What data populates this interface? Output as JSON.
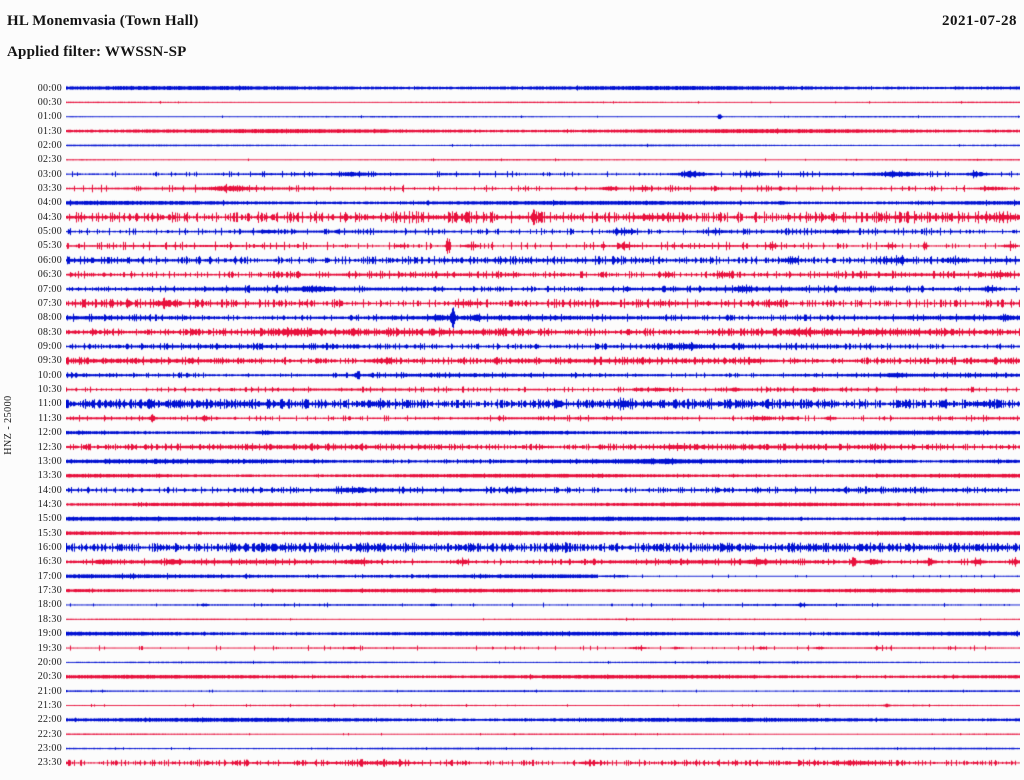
{
  "header": {
    "station_title": "HL Monemvasia (Town Hall)",
    "filter_label": "Applied filter: WWSSN-SP",
    "date": "2021-07-28"
  },
  "axis": {
    "left_label": "HNZ - 25000"
  },
  "colors": {
    "blue": "#0010d2",
    "red": "#e8103c",
    "text": "#1a1a1a",
    "background": "#fcfcfc"
  },
  "chart_data": {
    "type": "line",
    "subtype": "helicorder",
    "title": "HL Monemvasia (Town Hall)",
    "filter": "WWSSN-SP",
    "date": "2021-07-28",
    "channel": "HNZ",
    "scale": 25000,
    "minutes_per_row": 30,
    "legend_position": "none",
    "grid": false,
    "row_color_cycle": [
      "blue",
      "red"
    ],
    "rows": [
      {
        "t": "00:00",
        "c": "blue",
        "b": 1.4,
        "d": 0.02,
        "s": 0.3,
        "e": []
      },
      {
        "t": "00:30",
        "c": "red",
        "b": 0.5,
        "d": 0.02,
        "s": 0.3,
        "e": []
      },
      {
        "t": "01:00",
        "c": "blue",
        "b": 0.5,
        "d": 0.02,
        "s": 0.3,
        "e": [
          [
            0.685,
            3,
            0.0015
          ]
        ]
      },
      {
        "t": "01:30",
        "c": "red",
        "b": 1.4,
        "d": 0.02,
        "s": 0.3,
        "e": []
      },
      {
        "t": "02:00",
        "c": "blue",
        "b": 0.6,
        "d": 0.02,
        "s": 0.3,
        "e": []
      },
      {
        "t": "02:30",
        "c": "red",
        "b": 0.5,
        "d": 0.02,
        "s": 0.3,
        "e": []
      },
      {
        "t": "03:00",
        "c": "blue",
        "b": 0.8,
        "d": 0.15,
        "s": 0.8,
        "e": [
          [
            0.3,
            1.5,
            0.01
          ],
          [
            0.655,
            2.8,
            0.01
          ],
          [
            0.72,
            1.3,
            0.008
          ],
          [
            0.87,
            1.8,
            0.015
          ],
          [
            0.955,
            2.0,
            0.006
          ]
        ]
      },
      {
        "t": "03:30",
        "c": "red",
        "b": 0.8,
        "d": 0.2,
        "s": 1.0,
        "e": [
          [
            0.17,
            2.5,
            0.012
          ],
          [
            0.57,
            1.5,
            0.006
          ],
          [
            0.605,
            1.5,
            0.004
          ],
          [
            0.97,
            1.5,
            0.01
          ]
        ]
      },
      {
        "t": "04:00",
        "c": "blue",
        "b": 1.4,
        "d": 0.05,
        "s": 0.4,
        "e": [
          [
            0.75,
            1.0,
            0.003
          ]
        ]
      },
      {
        "t": "04:30",
        "c": "red",
        "b": 1.1,
        "d": 0.55,
        "s": 1.6,
        "e": [
          [
            0.49,
            7,
            0.0015
          ],
          [
            0.62,
            1.6,
            0.02
          ],
          [
            0.985,
            1.3,
            0.01
          ]
        ]
      },
      {
        "t": "05:00",
        "c": "blue",
        "b": 0.8,
        "d": 0.3,
        "s": 1.0,
        "e": [
          [
            0.585,
            1.8,
            0.008
          ],
          [
            0.21,
            1.2,
            0.006
          ],
          [
            0.68,
            1.0,
            0.008
          ],
          [
            0.81,
            1.0,
            0.006
          ]
        ]
      },
      {
        "t": "05:30",
        "c": "red",
        "b": 0.7,
        "d": 0.25,
        "s": 1.2,
        "e": [
          [
            0.4,
            6,
            0.0015
          ],
          [
            0.425,
            2,
            0.005
          ],
          [
            0.35,
            1.5,
            0.004
          ],
          [
            0.585,
            1.6,
            0.004
          ],
          [
            0.74,
            1.6,
            0.0025
          ],
          [
            0.9,
            5,
            0.0015
          ],
          [
            0.865,
            1.6,
            0.004
          ],
          [
            0.99,
            1.4,
            0.004
          ]
        ]
      },
      {
        "t": "06:00",
        "c": "blue",
        "b": 1.0,
        "d": 0.5,
        "s": 1.1,
        "e": [
          [
            0.76,
            1.5,
            0.008
          ],
          [
            0.87,
            1.5,
            0.012
          ],
          [
            0.93,
            1.2,
            0.006
          ]
        ]
      },
      {
        "t": "06:30",
        "c": "red",
        "b": 0.9,
        "d": 0.4,
        "s": 1.0,
        "e": [
          [
            0.63,
            1.8,
            0.003
          ],
          [
            0.69,
            1.8,
            0.006
          ],
          [
            0.98,
            1.5,
            0.008
          ]
        ]
      },
      {
        "t": "07:00",
        "c": "blue",
        "b": 1.2,
        "d": 0.3,
        "s": 0.8,
        "e": [
          [
            0.26,
            1.8,
            0.01
          ],
          [
            0.71,
            1.5,
            0.006
          ],
          [
            0.97,
            1.5,
            0.006
          ]
        ]
      },
      {
        "t": "07:30",
        "c": "red",
        "b": 0.9,
        "d": 0.5,
        "s": 1.2,
        "e": [
          [
            0.105,
            2.2,
            0.008
          ],
          [
            0.42,
            1.5,
            0.01
          ],
          [
            0.74,
            1.5,
            0.006
          ]
        ]
      },
      {
        "t": "08:00",
        "c": "blue",
        "b": 1.3,
        "d": 0.25,
        "s": 0.8,
        "e": [
          [
            0.405,
            9,
            0.0013
          ],
          [
            0.39,
            1.6,
            0.005
          ],
          [
            0.43,
            2.2,
            0.0025
          ],
          [
            0.985,
            1.2,
            0.004
          ]
        ]
      },
      {
        "t": "08:30",
        "c": "red",
        "b": 1.3,
        "d": 0.6,
        "s": 1.0,
        "e": [
          [
            0.24,
            1.5,
            0.015
          ],
          [
            0.77,
            1.2,
            0.01
          ]
        ]
      },
      {
        "t": "09:00",
        "c": "blue",
        "b": 1.0,
        "d": 0.5,
        "s": 0.8,
        "e": [
          [
            0.65,
            1.3,
            0.01
          ]
        ]
      },
      {
        "t": "09:30",
        "c": "red",
        "b": 1.2,
        "d": 0.5,
        "s": 0.9,
        "e": [
          [
            0.33,
            1.5,
            0.01
          ],
          [
            0.72,
            1.3,
            0.008
          ]
        ]
      },
      {
        "t": "10:00",
        "c": "blue",
        "b": 1.1,
        "d": 0.2,
        "s": 0.6,
        "e": [
          [
            0.305,
            3.5,
            0.0015
          ],
          [
            0.87,
            1.2,
            0.006
          ]
        ]
      },
      {
        "t": "10:30",
        "c": "red",
        "b": 0.8,
        "d": 0.25,
        "s": 0.8,
        "e": [
          [
            0.62,
            1.8,
            0.006
          ],
          [
            0.6,
            1.5,
            0.004
          ],
          [
            0.7,
            1.2,
            0.004
          ]
        ]
      },
      {
        "t": "11:00",
        "c": "blue",
        "b": 1.1,
        "d": 0.85,
        "s": 1.3,
        "e": [
          [
            0.585,
            2.5,
            0.005
          ],
          [
            0.33,
            1.4,
            0.01
          ],
          [
            0.96,
            1.6,
            0.008
          ]
        ]
      },
      {
        "t": "11:30",
        "c": "red",
        "b": 0.8,
        "d": 0.2,
        "s": 0.8,
        "e": [
          [
            0.09,
            2.5,
            0.002
          ],
          [
            0.145,
            2.5,
            0.002
          ],
          [
            0.73,
            2.0,
            0.008
          ],
          [
            0.76,
            1.5,
            0.004
          ],
          [
            0.8,
            1.2,
            0.004
          ]
        ]
      },
      {
        "t": "12:00",
        "c": "blue",
        "b": 1.4,
        "d": 0.05,
        "s": 0.3,
        "e": [
          [
            0.21,
            1.0,
            0.004
          ]
        ]
      },
      {
        "t": "12:30",
        "c": "red",
        "b": 1.1,
        "d": 0.5,
        "s": 0.8,
        "e": [
          [
            0.64,
            1.2,
            0.008
          ]
        ]
      },
      {
        "t": "13:00",
        "c": "blue",
        "b": 1.4,
        "d": 0.15,
        "s": 0.4,
        "e": [
          [
            0.62,
            0.8,
            0.02
          ],
          [
            0.86,
            0.8,
            0.01
          ]
        ]
      },
      {
        "t": "13:30",
        "c": "red",
        "b": 1.3,
        "d": 0.08,
        "s": 0.3,
        "e": []
      },
      {
        "t": "14:00",
        "c": "blue",
        "b": 1.0,
        "d": 0.35,
        "s": 0.8,
        "e": [
          [
            0.3,
            1.5,
            0.012
          ],
          [
            0.47,
            1.3,
            0.01
          ]
        ]
      },
      {
        "t": "14:30",
        "c": "red",
        "b": 1.3,
        "d": 0.06,
        "s": 0.3,
        "e": []
      },
      {
        "t": "15:00",
        "c": "blue",
        "b": 1.4,
        "d": 0.05,
        "s": 0.3,
        "e": []
      },
      {
        "t": "15:30",
        "c": "red",
        "b": 1.4,
        "d": 0.05,
        "s": 0.3,
        "e": []
      },
      {
        "t": "16:00",
        "c": "blue",
        "b": 1.1,
        "d": 0.85,
        "s": 1.2,
        "e": [
          [
            0.52,
            1.5,
            0.01
          ],
          [
            0.97,
            1.3,
            0.01
          ]
        ]
      },
      {
        "t": "16:30",
        "c": "red",
        "b": 1.2,
        "d": 0.2,
        "s": 0.8,
        "e": [
          [
            0.04,
            1.8,
            0.005
          ],
          [
            0.11,
            1.5,
            0.004
          ],
          [
            0.305,
            1.6,
            0.008
          ],
          [
            0.415,
            1.6,
            0.005
          ],
          [
            0.725,
            1.6,
            0.006
          ],
          [
            0.825,
            6,
            0.0015
          ],
          [
            0.845,
            2,
            0.005
          ],
          [
            0.905,
            2,
            0.004
          ],
          [
            0.955,
            2,
            0.004
          ],
          [
            0.995,
            1.6,
            0.003
          ]
        ]
      },
      {
        "t": "17:00",
        "c": "blue",
        "b": 1.3,
        "d": 0.1,
        "s": 0.5,
        "sp": 0.557,
        "b2": 0.4,
        "e": [
          [
            0.575,
            1.0,
            0.008
          ]
        ]
      },
      {
        "t": "17:30",
        "c": "red",
        "b": 1.3,
        "d": 0.04,
        "s": 0.3,
        "e": []
      },
      {
        "t": "18:00",
        "c": "blue",
        "b": 0.6,
        "d": 0.06,
        "s": 0.6,
        "e": [
          [
            0.145,
            1.2,
            0.002
          ],
          [
            0.385,
            1.2,
            0.002
          ],
          [
            0.77,
            1.5,
            0.002
          ]
        ]
      },
      {
        "t": "18:30",
        "c": "red",
        "b": 0.5,
        "d": 0.03,
        "s": 0.3,
        "e": []
      },
      {
        "t": "19:00",
        "c": "blue",
        "b": 1.4,
        "d": 0.04,
        "s": 0.3,
        "e": []
      },
      {
        "t": "19:30",
        "c": "red",
        "b": 0.5,
        "d": 0.12,
        "s": 0.8,
        "e": [
          [
            0.3,
            1.0,
            0.003
          ],
          [
            0.6,
            1.2,
            0.006
          ],
          [
            0.64,
            1.0,
            0.004
          ],
          [
            0.73,
            1.0,
            0.003
          ],
          [
            0.79,
            1.0,
            0.003
          ],
          [
            0.85,
            1.0,
            0.002
          ]
        ]
      },
      {
        "t": "20:00",
        "c": "blue",
        "b": 0.6,
        "d": 0.03,
        "s": 0.3,
        "e": []
      },
      {
        "t": "20:30",
        "c": "red",
        "b": 1.3,
        "d": 0.04,
        "s": 0.3,
        "e": []
      },
      {
        "t": "21:00",
        "c": "blue",
        "b": 0.6,
        "d": 0.03,
        "s": 0.3,
        "e": []
      },
      {
        "t": "21:30",
        "c": "red",
        "b": 0.5,
        "d": 0.04,
        "s": 0.4,
        "e": [
          [
            0.86,
            1.2,
            0.002
          ]
        ]
      },
      {
        "t": "22:00",
        "c": "blue",
        "b": 1.4,
        "d": 0.04,
        "s": 0.3,
        "e": []
      },
      {
        "t": "22:30",
        "c": "red",
        "b": 0.5,
        "d": 0.03,
        "s": 0.3,
        "e": []
      },
      {
        "t": "23:00",
        "c": "blue",
        "b": 0.6,
        "d": 0.03,
        "s": 0.3,
        "e": []
      },
      {
        "t": "23:30",
        "c": "red",
        "b": 0.7,
        "d": 0.5,
        "s": 0.9,
        "e": [
          [
            0.33,
            1.0,
            0.02
          ],
          [
            0.55,
            1.0,
            0.01
          ],
          [
            0.83,
            1.0,
            0.015
          ]
        ]
      }
    ]
  }
}
